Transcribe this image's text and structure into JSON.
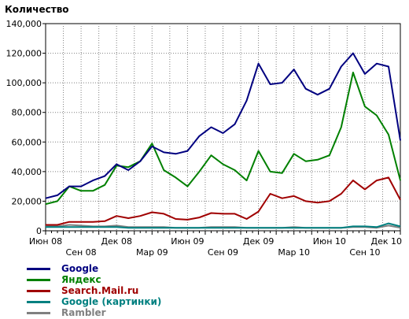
{
  "chart_data": {
    "type": "line",
    "ylabel": "Количество",
    "xlabel": "",
    "ylim": [
      0,
      140000
    ],
    "y_ticks": [
      "0",
      "20,000",
      "40,000",
      "60,000",
      "80,000",
      "100,000",
      "120,000",
      "140,000"
    ],
    "y_tick_values": [
      0,
      20000,
      40000,
      60000,
      80000,
      100000,
      120000,
      140000
    ],
    "x_ticks_top": [
      "Июн 08",
      "Дек 08",
      "Июн 09",
      "Дек 09",
      "Июн 10",
      "Дек 10"
    ],
    "x_ticks_bottom": [
      "Сен 08",
      "Мар 09",
      "Сен 09",
      "Мар 10",
      "Сен 10"
    ],
    "x_tick_indices_top": [
      0,
      12,
      24,
      36,
      48,
      60
    ],
    "x_tick_indices_bottom": [
      6,
      18,
      30,
      42,
      54
    ],
    "grid": true,
    "legend_position": "bottom-left",
    "x_count": 31,
    "series": [
      {
        "name": "Google",
        "color": "#000080",
        "values": [
          22000,
          24000,
          30000,
          30000,
          34000,
          37000,
          45000,
          41000,
          47000,
          57000,
          53000,
          52000,
          54000,
          64000,
          70000,
          66000,
          72000,
          88000,
          113000,
          99000,
          100000,
          109000,
          96000,
          92000,
          96000,
          111000,
          120000,
          106000,
          113000,
          111000,
          61000
        ]
      },
      {
        "name": "Яндекс",
        "color": "#008000",
        "values": [
          18000,
          20000,
          30000,
          27000,
          27000,
          31000,
          44000,
          43000,
          47000,
          59000,
          41000,
          36000,
          30000,
          40000,
          51000,
          45000,
          41000,
          34000,
          54000,
          40000,
          39000,
          52000,
          47000,
          48000,
          51000,
          70000,
          107000,
          84000,
          78000,
          65000,
          34000
        ]
      },
      {
        "name": "Search.Mail.ru",
        "color": "#a00000",
        "values": [
          4000,
          4000,
          6000,
          6000,
          6000,
          6500,
          10000,
          8500,
          10000,
          12500,
          11500,
          8000,
          7500,
          9000,
          12000,
          11500,
          11500,
          8000,
          13000,
          25000,
          22000,
          23500,
          20000,
          19000,
          20000,
          25000,
          34000,
          28000,
          34000,
          36000,
          21000
        ]
      },
      {
        "name": "Google (картинки)",
        "color": "#008080",
        "values": [
          2500,
          2500,
          2500,
          2500,
          2500,
          2500,
          2500,
          2000,
          2000,
          2000,
          2000,
          2000,
          2000,
          2000,
          2000,
          2000,
          2000,
          2000,
          2000,
          2000,
          2000,
          2000,
          2000,
          2000,
          2000,
          2000,
          3000,
          3000,
          2500,
          5000,
          3000
        ]
      },
      {
        "name": "Rambler",
        "color": "#808080",
        "values": [
          3000,
          3000,
          4000,
          3500,
          3000,
          3000,
          3500,
          2500,
          2500,
          2500,
          2500,
          2000,
          2000,
          2000,
          2500,
          2500,
          2500,
          2000,
          2000,
          2000,
          2000,
          2500,
          2000,
          2000,
          2000,
          2000,
          2500,
          2500,
          2000,
          3500,
          2000
        ]
      }
    ]
  }
}
